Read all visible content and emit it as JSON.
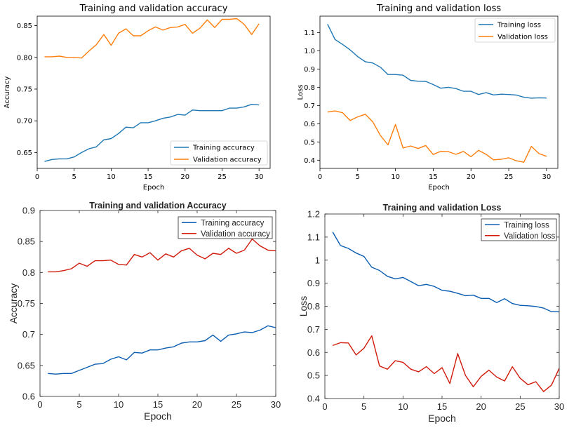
{
  "chart_data": [
    {
      "type": "line",
      "title": "Training and validation accuracy",
      "xlabel": "Epoch",
      "ylabel": "Accuracy",
      "xlim": [
        0,
        31.5
      ],
      "ylim": [
        0.625,
        0.865
      ],
      "xticks": [
        0,
        5,
        10,
        15,
        20,
        25,
        30
      ],
      "yticks": [
        0.65,
        0.7,
        0.75,
        0.8,
        0.85
      ],
      "ytick_labels": [
        "0.65",
        "0.70",
        "0.75",
        "0.80",
        "0.85"
      ],
      "grid": false,
      "legend_position": "lower-right",
      "x": [
        1,
        2,
        3,
        4,
        5,
        6,
        7,
        8,
        9,
        10,
        11,
        12,
        13,
        14,
        15,
        16,
        17,
        18,
        19,
        20,
        21,
        22,
        23,
        24,
        25,
        26,
        27,
        28,
        29,
        30
      ],
      "series": [
        {
          "name": "Training accuracy",
          "color": "#1f77b4",
          "values": [
            0.636,
            0.639,
            0.64,
            0.64,
            0.643,
            0.65,
            0.656,
            0.659,
            0.67,
            0.672,
            0.68,
            0.69,
            0.689,
            0.697,
            0.697,
            0.7,
            0.704,
            0.706,
            0.71,
            0.709,
            0.717,
            0.716,
            0.716,
            0.716,
            0.716,
            0.72,
            0.72,
            0.722,
            0.726,
            0.725
          ]
        },
        {
          "name": "Validation accuracy",
          "color": "#ff7f0e",
          "values": [
            0.801,
            0.801,
            0.802,
            0.8,
            0.8,
            0.799,
            0.81,
            0.82,
            0.836,
            0.819,
            0.838,
            0.845,
            0.834,
            0.834,
            0.842,
            0.848,
            0.843,
            0.847,
            0.848,
            0.852,
            0.838,
            0.846,
            0.859,
            0.847,
            0.86,
            0.86,
            0.861,
            0.852,
            0.836,
            0.853
          ]
        }
      ]
    },
    {
      "type": "line",
      "title": "Training and validation loss",
      "xlabel": "Epoch",
      "ylabel": "Loss",
      "xlim": [
        0,
        31.5
      ],
      "ylim": [
        0.355,
        1.19
      ],
      "xticks": [
        0,
        5,
        10,
        15,
        20,
        25,
        30
      ],
      "yticks": [
        0.4,
        0.5,
        0.6,
        0.7,
        0.8,
        0.9,
        1.0,
        1.1
      ],
      "ytick_labels": [
        "0.4",
        "0.5",
        "0.6",
        "0.7",
        "0.8",
        "0.9",
        "1.0",
        "1.1"
      ],
      "grid": false,
      "legend_position": "upper-right",
      "x": [
        1,
        2,
        3,
        4,
        5,
        6,
        7,
        8,
        9,
        10,
        11,
        12,
        13,
        14,
        15,
        16,
        17,
        18,
        19,
        20,
        21,
        22,
        23,
        24,
        25,
        26,
        27,
        28,
        29,
        30
      ],
      "series": [
        {
          "name": "Training loss",
          "color": "#1f77b4",
          "values": [
            1.146,
            1.062,
            1.035,
            1.005,
            0.968,
            0.94,
            0.933,
            0.91,
            0.87,
            0.87,
            0.866,
            0.838,
            0.833,
            0.832,
            0.815,
            0.795,
            0.8,
            0.793,
            0.778,
            0.778,
            0.76,
            0.77,
            0.758,
            0.762,
            0.76,
            0.757,
            0.745,
            0.74,
            0.742,
            0.741
          ]
        },
        {
          "name": "Validation loss",
          "color": "#ff7f0e",
          "values": [
            0.664,
            0.67,
            0.66,
            0.618,
            0.638,
            0.652,
            0.61,
            0.536,
            0.484,
            0.596,
            0.467,
            0.478,
            0.464,
            0.481,
            0.431,
            0.449,
            0.447,
            0.432,
            0.448,
            0.419,
            0.454,
            0.432,
            0.402,
            0.405,
            0.413,
            0.397,
            0.389,
            0.476,
            0.436,
            0.421
          ]
        }
      ]
    },
    {
      "type": "line",
      "title": "Training and validation Accuracy",
      "xlabel": "Epoch",
      "ylabel": "Accuracy",
      "xlim": [
        0,
        30
      ],
      "ylim": [
        0.6,
        0.9
      ],
      "xticks": [
        0,
        5,
        10,
        15,
        20,
        25,
        30
      ],
      "yticks": [
        0.6,
        0.65,
        0.7,
        0.75,
        0.8,
        0.85,
        0.9
      ],
      "ytick_labels": [
        "0.6",
        "0.65",
        "0.7",
        "0.75",
        "0.8",
        "0.85",
        "0.9"
      ],
      "grid": false,
      "legend_position": "top-right",
      "x": [
        1,
        2,
        3,
        4,
        5,
        6,
        7,
        8,
        9,
        10,
        11,
        12,
        13,
        14,
        15,
        16,
        17,
        18,
        19,
        20,
        21,
        22,
        23,
        24,
        25,
        26,
        27,
        28,
        29,
        30
      ],
      "series": [
        {
          "name": "Training accuracy",
          "color": "#0b5db1",
          "values": [
            0.637,
            0.636,
            0.637,
            0.637,
            0.642,
            0.647,
            0.652,
            0.653,
            0.66,
            0.664,
            0.659,
            0.671,
            0.67,
            0.675,
            0.675,
            0.678,
            0.68,
            0.686,
            0.688,
            0.688,
            0.69,
            0.699,
            0.689,
            0.699,
            0.701,
            0.704,
            0.703,
            0.707,
            0.714,
            0.711
          ]
        },
        {
          "name": "Validation accuracy",
          "color": "#d11a0a",
          "values": [
            0.801,
            0.801,
            0.803,
            0.806,
            0.815,
            0.81,
            0.819,
            0.819,
            0.82,
            0.813,
            0.812,
            0.829,
            0.825,
            0.832,
            0.82,
            0.83,
            0.825,
            0.835,
            0.839,
            0.828,
            0.822,
            0.831,
            0.829,
            0.839,
            0.831,
            0.836,
            0.854,
            0.843,
            0.836,
            0.835
          ]
        }
      ]
    },
    {
      "type": "line",
      "title": "Training and validation Loss",
      "xlabel": "Epoch",
      "ylabel": "Loss",
      "xlim": [
        0,
        30
      ],
      "ylim": [
        0.4,
        1.2
      ],
      "xticks": [
        0,
        5,
        10,
        15,
        20,
        25,
        30
      ],
      "yticks": [
        0.4,
        0.5,
        0.6,
        0.7,
        0.8,
        0.9,
        1.0,
        1.1,
        1.2
      ],
      "ytick_labels": [
        "0.4",
        "0.5",
        "0.6",
        "0.7",
        "0.8",
        "0.9",
        "1",
        "1.1",
        "1.2"
      ],
      "grid": false,
      "legend_position": "top-right",
      "x": [
        1,
        2,
        3,
        4,
        5,
        6,
        7,
        8,
        9,
        10,
        11,
        12,
        13,
        14,
        15,
        16,
        17,
        18,
        19,
        20,
        21,
        22,
        23,
        24,
        25,
        26,
        27,
        28,
        29,
        30
      ],
      "series": [
        {
          "name": "Training loss",
          "color": "#0b5db1",
          "values": [
            1.122,
            1.063,
            1.051,
            1.031,
            1.016,
            0.969,
            0.955,
            0.93,
            0.919,
            0.925,
            0.907,
            0.889,
            0.895,
            0.886,
            0.869,
            0.865,
            0.856,
            0.846,
            0.848,
            0.834,
            0.834,
            0.816,
            0.833,
            0.812,
            0.804,
            0.802,
            0.799,
            0.792,
            0.777,
            0.776
          ]
        },
        {
          "name": "Validation loss",
          "color": "#d11a0a",
          "values": [
            0.63,
            0.642,
            0.641,
            0.589,
            0.618,
            0.672,
            0.541,
            0.527,
            0.564,
            0.557,
            0.527,
            0.516,
            0.538,
            0.508,
            0.534,
            0.465,
            0.595,
            0.5,
            0.451,
            0.496,
            0.523,
            0.493,
            0.476,
            0.538,
            0.488,
            0.46,
            0.473,
            0.43,
            0.458,
            0.531
          ]
        }
      ]
    }
  ]
}
